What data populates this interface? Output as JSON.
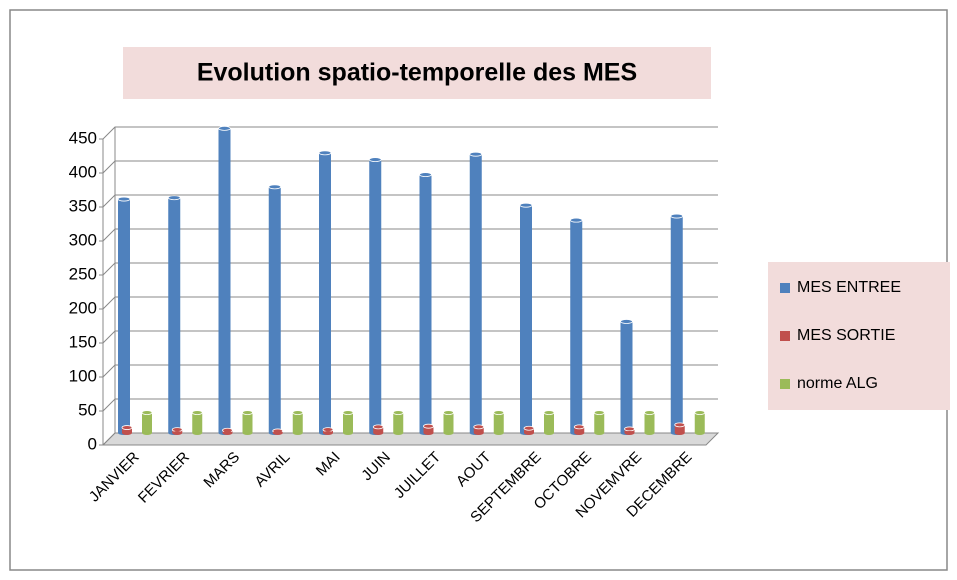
{
  "chart_data": {
    "type": "bar",
    "title": "Evolution spatio-temporelle des MES",
    "categories": [
      "JANVIER",
      "FEVRIER",
      "MARS",
      "AVRIL",
      "MAI",
      "JUIN",
      "JUILLET",
      "AOUT",
      "SEPTEMBRE",
      "OCTOBRE",
      "NOVEMVRE",
      "DECEMBRE"
    ],
    "series": [
      {
        "name": "MES ENTREE",
        "color": "#4f81bd",
        "values": [
          344,
          346,
          448,
          362,
          412,
          402,
          380,
          410,
          335,
          313,
          164,
          319
        ]
      },
      {
        "name": "MES SORTIE",
        "color": "#c0504d",
        "values": [
          8,
          5,
          4,
          3,
          5,
          9,
          10,
          9,
          7,
          9,
          6,
          12
        ]
      },
      {
        "name": "norme ALG",
        "color": "#9bbb59",
        "values": [
          30,
          30,
          30,
          30,
          30,
          30,
          30,
          30,
          30,
          30,
          30,
          30
        ]
      }
    ],
    "ylim": [
      0,
      450
    ],
    "yticks": [
      0,
      50,
      100,
      150,
      200,
      250,
      300,
      350,
      400,
      450
    ],
    "grid": true,
    "legend": "right"
  }
}
